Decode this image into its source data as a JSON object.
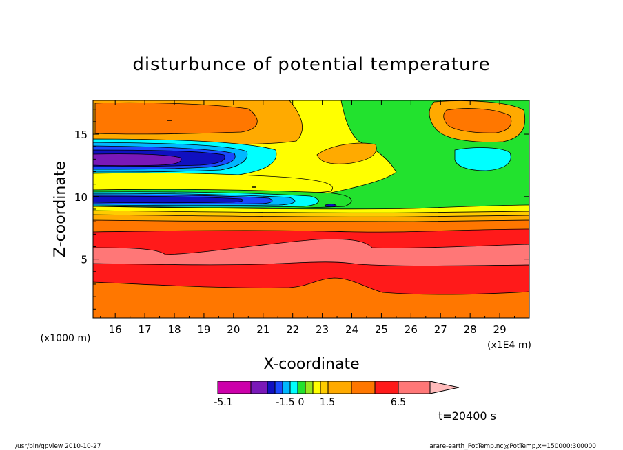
{
  "chart_data": {
    "type": "heatmap",
    "title": "disturbunce of potential temperature",
    "xlabel": "X-coordinate",
    "ylabel": "Z-coordinate",
    "x_range": [
      15.25,
      30
    ],
    "y_range": [
      0.3,
      17.7
    ],
    "x_ticks": [
      16,
      17,
      18,
      19,
      20,
      21,
      22,
      23,
      24,
      25,
      26,
      27,
      28,
      29
    ],
    "x_tick_labels": [
      "16",
      "17",
      "18",
      "19",
      "20",
      "21",
      "22",
      "23",
      "24",
      "25",
      "26",
      "27",
      "28",
      "29"
    ],
    "y_ticks": [
      5,
      10,
      15
    ],
    "y_tick_labels": [
      "5",
      "10",
      "15"
    ],
    "x_unit": "(x1E4 m)",
    "y_unit": "(x1000 m)",
    "colorbar": {
      "levels": [
        -5.1,
        -4.5,
        -3.9,
        -3.3,
        -2.7,
        -2.1,
        -1.5,
        -0.9,
        -0.3,
        0.3,
        0.9,
        1.5,
        2.1,
        2.7,
        3.3,
        3.9,
        4.5,
        5.1,
        5.7,
        6.5
      ],
      "level_labels": [
        "-5.1",
        "-1.5",
        "0",
        "1.5",
        "6.5"
      ],
      "colors": [
        "#cc00aa",
        "#7a18b8",
        "#1010c0",
        "#1a4aff",
        "#00b8ff",
        "#00ffff",
        "#22e22e",
        "#9ae61e",
        "#ffff00",
        "#ffcc00",
        "#ffaa00",
        "#ff7700",
        "#ff1a1a",
        "#ff7777",
        "#ffbbbb"
      ]
    },
    "time_label": "t=20400 s",
    "grid": false
  },
  "footer": {
    "left": "/usr/bin/gpview  2010-10-27",
    "right": "arare-earth_PotTemp.nc@PotTemp,x=150000:300000"
  }
}
